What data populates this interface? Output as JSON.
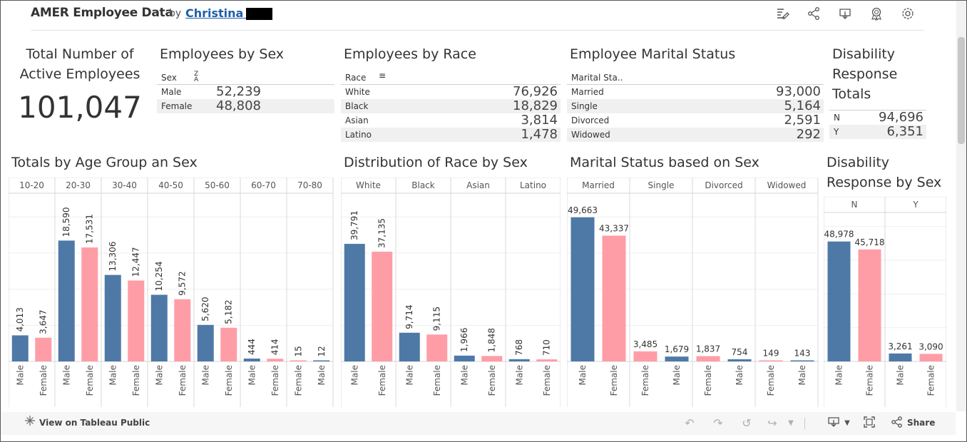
{
  "header": {
    "title": "AMER Employee Data",
    "by": "by",
    "author": "Christina S",
    "icons": [
      "edit-icon",
      "share-icon",
      "download-icon",
      "badge-icon",
      "settings-icon"
    ]
  },
  "kpi": {
    "title": "Total Number of Active Employees",
    "value": "101,047"
  },
  "sex_table": {
    "title": "Employees by Sex",
    "column": "Sex",
    "rows": [
      {
        "label": "Male",
        "value": "52,239"
      },
      {
        "label": "Female",
        "value": "48,808"
      }
    ]
  },
  "race_table": {
    "title": "Employees by Race",
    "column": "Race",
    "rows": [
      {
        "label": "White",
        "value": "76,926"
      },
      {
        "label": "Black",
        "value": "18,829"
      },
      {
        "label": "Asian",
        "value": "3,814"
      },
      {
        "label": "Latino",
        "value": "1,478"
      }
    ]
  },
  "marital_table": {
    "title": "Employee Marital Status",
    "column": "Marital Sta..",
    "rows": [
      {
        "label": "Married",
        "value": "93,000"
      },
      {
        "label": "Single",
        "value": "5,164"
      },
      {
        "label": "Divorced",
        "value": "2,591"
      },
      {
        "label": "Widowed",
        "value": "292"
      }
    ]
  },
  "disability_table": {
    "title": "Disability Response Totals",
    "rows": [
      {
        "label": "N",
        "value": "94,696"
      },
      {
        "label": "Y",
        "value": "6,351"
      }
    ]
  },
  "colors": {
    "Male": "#4e79a7",
    "Female": "#ff9da7"
  },
  "chart_data": [
    {
      "type": "bar",
      "title": "Totals by Age Group an Sex",
      "groups": [
        {
          "name": "10-20",
          "bars": [
            {
              "sex": "Male",
              "value": 4013
            },
            {
              "sex": "Female",
              "value": 3647
            }
          ]
        },
        {
          "name": "20-30",
          "bars": [
            {
              "sex": "Male",
              "value": 18590
            },
            {
              "sex": "Female",
              "value": 17531
            }
          ]
        },
        {
          "name": "30-40",
          "bars": [
            {
              "sex": "Male",
              "value": 13306
            },
            {
              "sex": "Female",
              "value": 12447
            }
          ]
        },
        {
          "name": "40-50",
          "bars": [
            {
              "sex": "Male",
              "value": 10254
            },
            {
              "sex": "Female",
              "value": 9572
            }
          ]
        },
        {
          "name": "50-60",
          "bars": [
            {
              "sex": "Male",
              "value": 5620
            },
            {
              "sex": "Female",
              "value": 5182
            }
          ]
        },
        {
          "name": "60-70",
          "bars": [
            {
              "sex": "Male",
              "value": 444
            },
            {
              "sex": "Female",
              "value": 414
            }
          ]
        },
        {
          "name": "70-80",
          "bars": [
            {
              "sex": "Female",
              "value": 15
            },
            {
              "sex": "Male",
              "value": 12
            }
          ]
        }
      ],
      "label_orientation": "vertical",
      "ylim": [
        0,
        25000
      ]
    },
    {
      "type": "bar",
      "title": "Distribution of Race by Sex",
      "groups": [
        {
          "name": "White",
          "bars": [
            {
              "sex": "Male",
              "value": 39791
            },
            {
              "sex": "Female",
              "value": 37135
            }
          ]
        },
        {
          "name": "Black",
          "bars": [
            {
              "sex": "Male",
              "value": 9714
            },
            {
              "sex": "Female",
              "value": 9115
            }
          ]
        },
        {
          "name": "Asian",
          "bars": [
            {
              "sex": "Male",
              "value": 1966
            },
            {
              "sex": "Female",
              "value": 1848
            }
          ]
        },
        {
          "name": "Latino",
          "bars": [
            {
              "sex": "Male",
              "value": 768
            },
            {
              "sex": "Female",
              "value": 710
            }
          ]
        }
      ],
      "label_orientation": "vertical",
      "ylim": [
        0,
        55000
      ]
    },
    {
      "type": "bar",
      "title": "Marital Status based on Sex",
      "groups": [
        {
          "name": "Married",
          "bars": [
            {
              "sex": "Male",
              "value": 49663
            },
            {
              "sex": "Female",
              "value": 43337
            }
          ]
        },
        {
          "name": "Single",
          "bars": [
            {
              "sex": "Female",
              "value": 3485
            },
            {
              "sex": "Male",
              "value": 1679
            }
          ]
        },
        {
          "name": "Divorced",
          "bars": [
            {
              "sex": "Female",
              "value": 1837
            },
            {
              "sex": "Male",
              "value": 754
            }
          ]
        },
        {
          "name": "Widowed",
          "bars": [
            {
              "sex": "Female",
              "value": 149
            },
            {
              "sex": "Male",
              "value": 143
            }
          ]
        }
      ],
      "label_orientation": "horizontal",
      "ylim": [
        0,
        56000
      ]
    },
    {
      "type": "bar",
      "title": "Disability Response by Sex",
      "groups": [
        {
          "name": "N",
          "bars": [
            {
              "sex": "Male",
              "value": 48978
            },
            {
              "sex": "Female",
              "value": 45718
            }
          ]
        },
        {
          "name": "Y",
          "bars": [
            {
              "sex": "Male",
              "value": 3261
            },
            {
              "sex": "Female",
              "value": 3090
            }
          ]
        }
      ],
      "label_orientation": "horizontal",
      "ylim": [
        0,
        62000
      ]
    }
  ],
  "toolbar": {
    "view_on": "View on Tableau Public",
    "share": "Share",
    "icons": [
      "undo-icon",
      "redo-icon",
      "revert-icon",
      "pause-icon",
      "download-icon",
      "fullscreen-icon",
      "share-icon"
    ]
  }
}
